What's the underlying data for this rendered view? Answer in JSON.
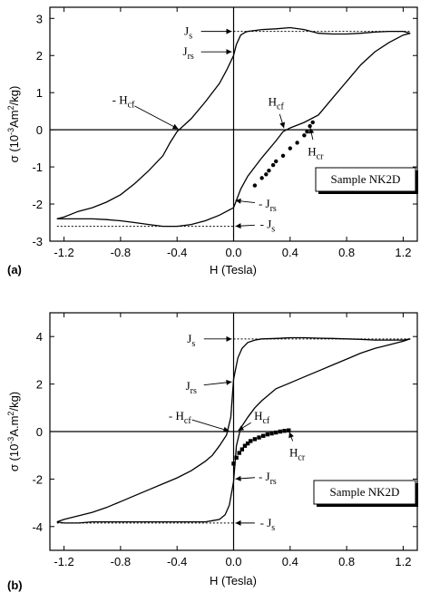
{
  "chart_data": [
    {
      "type": "line",
      "panel_label": "(a)",
      "xlabel": "H (Tesla)",
      "ylabel_parts": [
        "σ (10",
        "-3",
        "Am",
        "2",
        "/kg)"
      ],
      "xlim": [
        -1.3,
        1.3
      ],
      "ylim": [
        -3,
        3.3
      ],
      "xticks": [
        -1.2,
        -0.8,
        -0.4,
        0.0,
        0.4,
        0.8,
        1.2
      ],
      "xtick_labels": [
        "-1.2",
        "-0.8",
        "-0.4",
        "0.0",
        "0.4",
        "0.8",
        "1.2"
      ],
      "yticks": [
        -3,
        -2,
        -1,
        0,
        1,
        2,
        3
      ],
      "ytick_labels": [
        "-3",
        "-2",
        "-1",
        "0",
        "1",
        "2",
        "3"
      ],
      "sample_label": "Sample NK2D",
      "series": [
        {
          "style": "line",
          "x": [
            -1.25,
            -1.2,
            -1.1,
            -1.0,
            -0.9,
            -0.8,
            -0.7,
            -0.6,
            -0.5,
            -0.45,
            -0.4,
            -0.3,
            -0.2,
            -0.1,
            -0.05,
            0.0,
            0.02,
            0.05,
            0.08,
            0.1,
            0.2,
            0.3,
            0.4,
            0.5,
            0.6,
            0.7,
            0.8,
            0.9,
            1.0,
            1.1,
            1.2,
            1.25
          ],
          "y": [
            -2.4,
            -2.35,
            -2.2,
            -2.1,
            -1.95,
            -1.75,
            -1.45,
            -1.1,
            -0.7,
            -0.35,
            -0.05,
            0.3,
            0.75,
            1.25,
            1.6,
            2.0,
            2.3,
            2.55,
            2.62,
            2.65,
            2.7,
            2.72,
            2.75,
            2.7,
            2.6,
            2.58,
            2.58,
            2.6,
            2.63,
            2.65,
            2.65,
            2.6
          ]
        },
        {
          "style": "line",
          "x": [
            1.25,
            1.2,
            1.1,
            1.0,
            0.9,
            0.8,
            0.7,
            0.6,
            0.5,
            0.4,
            0.35,
            0.3,
            0.2,
            0.1,
            0.05,
            0.02,
            0.0,
            -0.05,
            -0.1,
            -0.2,
            -0.3,
            -0.4,
            -0.5,
            -0.6,
            -0.7,
            -0.8,
            -0.9,
            -1.0,
            -1.1,
            -1.2,
            -1.25
          ],
          "y": [
            2.6,
            2.55,
            2.35,
            2.1,
            1.75,
            1.3,
            0.85,
            0.4,
            0.2,
            0.05,
            -0.05,
            -0.3,
            -0.75,
            -1.25,
            -1.6,
            -1.9,
            -2.1,
            -2.2,
            -2.3,
            -2.45,
            -2.55,
            -2.6,
            -2.6,
            -2.55,
            -2.5,
            -2.45,
            -2.42,
            -2.4,
            -2.4,
            -2.4,
            -2.4
          ]
        },
        {
          "style": "dots",
          "x": [
            0.15,
            0.2,
            0.23,
            0.25,
            0.28,
            0.3,
            0.35,
            0.4,
            0.45,
            0.5,
            0.52,
            0.54,
            0.56
          ],
          "y": [
            -1.5,
            -1.3,
            -1.2,
            -1.1,
            -0.95,
            -0.85,
            -0.7,
            -0.5,
            -0.35,
            -0.15,
            -0.05,
            0.1,
            0.2
          ]
        }
      ],
      "reference_lines": [
        {
          "x": [
            0.0,
            1.25
          ],
          "y": [
            2.65,
            2.65
          ]
        },
        {
          "x": [
            -1.25,
            0.0
          ],
          "y": [
            -2.6,
            -2.6
          ]
        }
      ],
      "annotations": [
        {
          "parts": [
            "J",
            "s"
          ],
          "point": [
            0.0,
            2.65
          ],
          "text_at": [
            -0.32,
            2.65
          ]
        },
        {
          "parts": [
            "J",
            "rs"
          ],
          "point": [
            0.0,
            2.1
          ],
          "text_at": [
            -0.32,
            2.1
          ]
        },
        {
          "parts": [
            "- H",
            "cf"
          ],
          "point": [
            -0.38,
            0.0
          ],
          "text_at": [
            -0.78,
            0.8
          ]
        },
        {
          "parts": [
            "H",
            "cf"
          ],
          "point": [
            0.36,
            0.0
          ],
          "text_at": [
            0.3,
            0.75
          ]
        },
        {
          "parts": [
            "H",
            "cr"
          ],
          "point": [
            0.54,
            0.1
          ],
          "text_at": [
            0.58,
            -0.6
          ]
        },
        {
          "parts": [
            "- J",
            "rs"
          ],
          "point": [
            0.0,
            -1.9
          ],
          "text_at": [
            0.24,
            -2.0
          ]
        },
        {
          "parts": [
            "- J",
            "s"
          ],
          "point": [
            0.0,
            -2.6
          ],
          "text_at": [
            0.24,
            -2.55
          ]
        }
      ]
    },
    {
      "type": "line",
      "panel_label": "(b)",
      "xlabel": "H (Tesla)",
      "ylabel_parts": [
        "σ (10",
        "-3",
        "A.m",
        "2",
        "/kg)"
      ],
      "xlim": [
        -1.3,
        1.3
      ],
      "ylim": [
        -5,
        5
      ],
      "xticks": [
        -1.2,
        -0.8,
        -0.4,
        0.0,
        0.4,
        0.8,
        1.2
      ],
      "xtick_labels": [
        "-1.2",
        "-0.8",
        "-0.4",
        "0.0",
        "0.4",
        "0.8",
        "1.2"
      ],
      "yticks": [
        -4,
        -2,
        0,
        2,
        4
      ],
      "ytick_labels": [
        "-4",
        "-2",
        "0",
        "2",
        "4"
      ],
      "sample_label": "Sample NK2D",
      "series": [
        {
          "style": "line",
          "x": [
            -1.25,
            -1.2,
            -1.1,
            -1.0,
            -0.9,
            -0.8,
            -0.7,
            -0.6,
            -0.5,
            -0.4,
            -0.3,
            -0.2,
            -0.15,
            -0.1,
            -0.05,
            -0.02,
            0.0,
            0.03,
            0.06,
            0.1,
            0.15,
            0.2,
            0.3,
            0.4,
            0.5,
            0.6,
            0.7,
            0.8,
            0.9,
            1.0,
            1.1,
            1.2,
            1.25
          ],
          "y": [
            -3.8,
            -3.7,
            -3.55,
            -3.4,
            -3.2,
            -2.95,
            -2.7,
            -2.45,
            -2.2,
            -1.95,
            -1.65,
            -1.25,
            -1.0,
            -0.6,
            -0.15,
            0.6,
            2.2,
            3.1,
            3.5,
            3.75,
            3.85,
            3.9,
            3.92,
            3.95,
            3.95,
            3.93,
            3.92,
            3.9,
            3.88,
            3.85,
            3.85,
            3.85,
            3.9
          ]
        },
        {
          "style": "line",
          "x": [
            1.25,
            1.2,
            1.1,
            1.0,
            0.9,
            0.8,
            0.7,
            0.6,
            0.5,
            0.4,
            0.3,
            0.2,
            0.15,
            0.1,
            0.05,
            0.02,
            0.0,
            -0.03,
            -0.06,
            -0.1,
            -0.15,
            -0.2,
            -0.3,
            -0.4,
            -0.5,
            -0.6,
            -0.7,
            -0.8,
            -0.9,
            -1.0,
            -1.1,
            -1.2,
            -1.25
          ],
          "y": [
            3.9,
            3.8,
            3.65,
            3.5,
            3.3,
            3.05,
            2.8,
            2.55,
            2.3,
            2.05,
            1.8,
            1.3,
            1.0,
            0.6,
            0.15,
            -0.6,
            -2.1,
            -3.1,
            -3.5,
            -3.7,
            -3.75,
            -3.8,
            -3.8,
            -3.8,
            -3.8,
            -3.8,
            -3.8,
            -3.8,
            -3.8,
            -3.8,
            -3.85,
            -3.85,
            -3.8
          ]
        },
        {
          "style": "squares",
          "x": [
            0.0,
            0.02,
            0.04,
            0.06,
            0.08,
            0.1,
            0.12,
            0.15,
            0.18,
            0.21,
            0.24,
            0.27,
            0.3,
            0.33,
            0.36,
            0.39
          ],
          "y": [
            -1.35,
            -1.1,
            -0.9,
            -0.75,
            -0.6,
            -0.5,
            -0.4,
            -0.32,
            -0.25,
            -0.18,
            -0.12,
            -0.08,
            -0.04,
            0.0,
            0.03,
            0.05
          ]
        }
      ],
      "reference_lines": [
        {
          "x": [
            0.0,
            1.25
          ],
          "y": [
            3.9,
            3.9
          ]
        },
        {
          "x": [
            -1.25,
            0.0
          ],
          "y": [
            -3.85,
            -3.85
          ]
        }
      ],
      "annotations": [
        {
          "parts": [
            "J",
            "s"
          ],
          "point": [
            0.0,
            3.9
          ],
          "text_at": [
            -0.3,
            3.9
          ]
        },
        {
          "parts": [
            "J",
            "rs"
          ],
          "point": [
            0.0,
            2.1
          ],
          "text_at": [
            -0.3,
            1.9
          ]
        },
        {
          "parts": [
            "- H",
            "cf"
          ],
          "point": [
            -0.02,
            0.0
          ],
          "text_at": [
            -0.38,
            0.65
          ]
        },
        {
          "parts": [
            "H",
            "cf"
          ],
          "point": [
            0.02,
            0.0
          ],
          "text_at": [
            0.2,
            0.65
          ]
        },
        {
          "parts": [
            "H",
            "cr"
          ],
          "point": [
            0.39,
            0.05
          ],
          "text_at": [
            0.45,
            -0.9
          ]
        },
        {
          "parts": [
            "- J",
            "rs"
          ],
          "point": [
            0.0,
            -2.0
          ],
          "text_at": [
            0.24,
            -1.9
          ]
        },
        {
          "parts": [
            "- J",
            "s"
          ],
          "point": [
            0.0,
            -3.85
          ],
          "text_at": [
            0.24,
            -3.85
          ]
        }
      ]
    }
  ]
}
